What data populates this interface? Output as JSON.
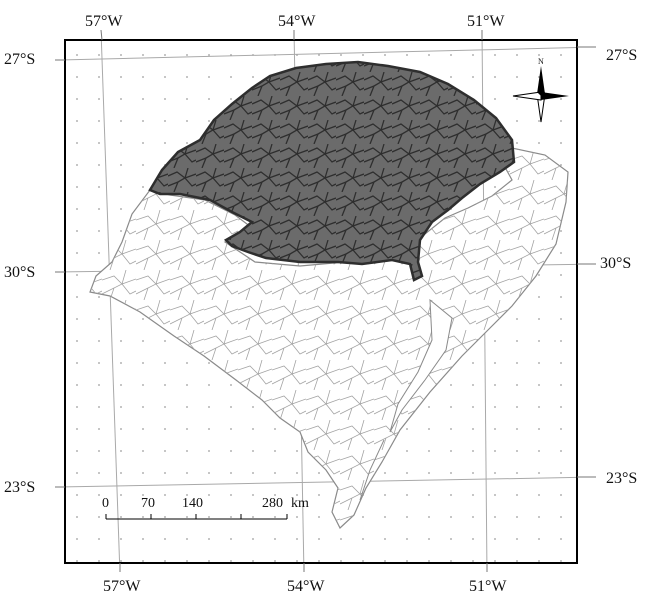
{
  "map": {
    "top_longitudes": [
      "57°W",
      "54°W",
      "51°W"
    ],
    "bottom_longitudes": [
      "57°W",
      "54°W",
      "51°W"
    ],
    "left_latitudes": [
      "27°S",
      "30°S",
      "23°S"
    ],
    "right_latitudes": [
      "27°S",
      "30°S",
      "23°S"
    ],
    "north_label": "N",
    "scale_bar": {
      "ticks": [
        "0",
        "70",
        "140",
        "280"
      ],
      "unit": "km"
    }
  },
  "colors": {
    "frame": "#000000",
    "highlight_fill": "#6b6b6b",
    "highlight_border": "#2e2e2e",
    "municipal_lines": "#9a9a9a",
    "graticule": "#a9a9a9"
  }
}
